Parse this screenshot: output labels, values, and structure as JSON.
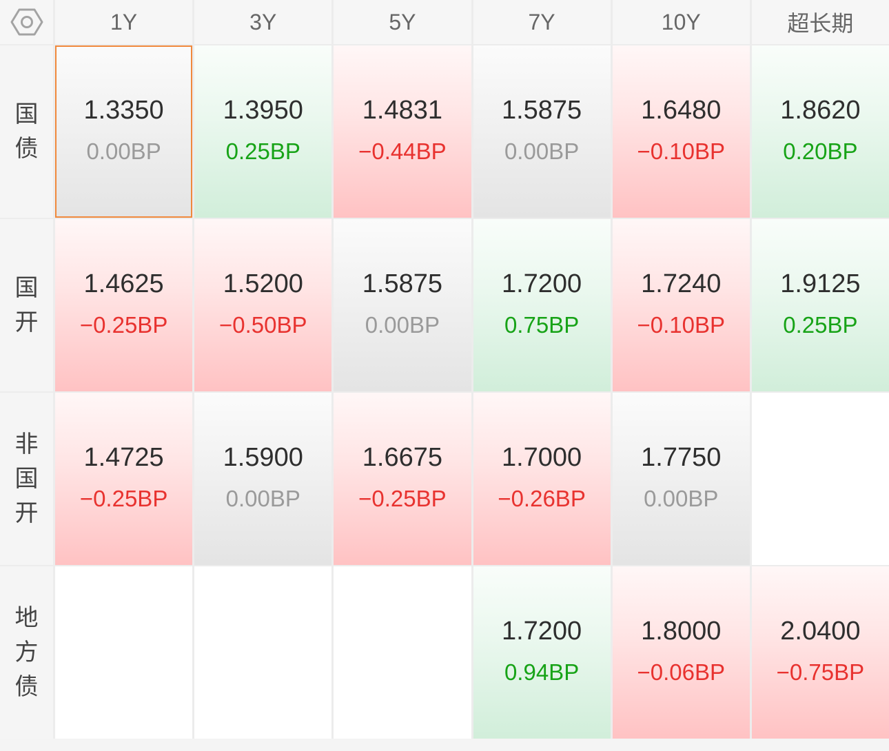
{
  "header": {
    "settings_icon": "settings-hexagon-icon",
    "columns": [
      "1Y",
      "3Y",
      "5Y",
      "7Y",
      "10Y",
      "超长期"
    ]
  },
  "colors": {
    "red": "#e8322f",
    "green": "#17a317",
    "gray": "#9a9a9a",
    "selected_border": "#f0893c"
  },
  "rows": [
    {
      "label": "国债",
      "cells": [
        {
          "value": "1.3350",
          "change": "0.00BP",
          "tone": "gray",
          "selected": true
        },
        {
          "value": "1.3950",
          "change": "0.25BP",
          "tone": "green"
        },
        {
          "value": "1.4831",
          "change": "−0.44BP",
          "tone": "red"
        },
        {
          "value": "1.5875",
          "change": "0.00BP",
          "tone": "gray"
        },
        {
          "value": "1.6480",
          "change": "−0.10BP",
          "tone": "red"
        },
        {
          "value": "1.8620",
          "change": "0.20BP",
          "tone": "green"
        }
      ]
    },
    {
      "label": "国开",
      "cells": [
        {
          "value": "1.4625",
          "change": "−0.25BP",
          "tone": "red"
        },
        {
          "value": "1.5200",
          "change": "−0.50BP",
          "tone": "red"
        },
        {
          "value": "1.5875",
          "change": "0.00BP",
          "tone": "gray"
        },
        {
          "value": "1.7200",
          "change": "0.75BP",
          "tone": "green"
        },
        {
          "value": "1.7240",
          "change": "−0.10BP",
          "tone": "red"
        },
        {
          "value": "1.9125",
          "change": "0.25BP",
          "tone": "green"
        }
      ]
    },
    {
      "label": "非国开",
      "cells": [
        {
          "value": "1.4725",
          "change": "−0.25BP",
          "tone": "red"
        },
        {
          "value": "1.5900",
          "change": "0.00BP",
          "tone": "gray"
        },
        {
          "value": "1.6675",
          "change": "−0.25BP",
          "tone": "red"
        },
        {
          "value": "1.7000",
          "change": "−0.26BP",
          "tone": "red"
        },
        {
          "value": "1.7750",
          "change": "0.00BP",
          "tone": "gray"
        },
        {
          "tone": "white"
        }
      ]
    },
    {
      "label": "地方债",
      "cells": [
        {
          "tone": "white"
        },
        {
          "tone": "white"
        },
        {
          "tone": "white"
        },
        {
          "value": "1.7200",
          "change": "0.94BP",
          "tone": "green"
        },
        {
          "value": "1.8000",
          "change": "−0.06BP",
          "tone": "red"
        },
        {
          "value": "2.0400",
          "change": "−0.75BP",
          "tone": "red"
        }
      ]
    }
  ]
}
